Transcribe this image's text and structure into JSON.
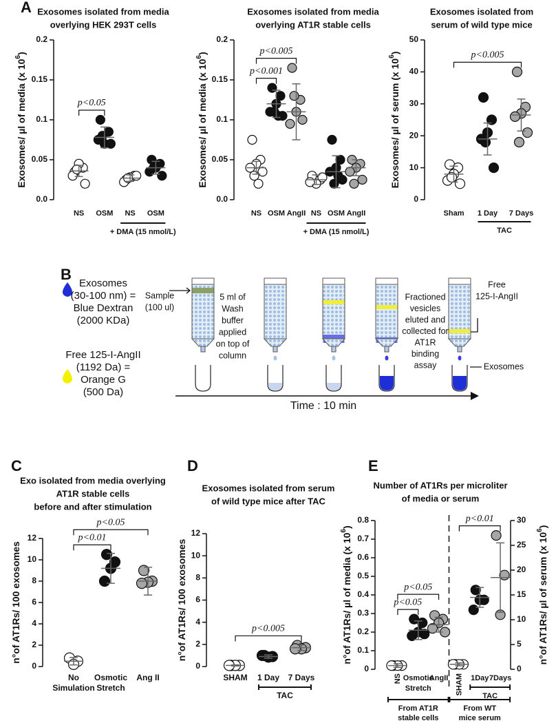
{
  "chart_data": [
    {
      "type": "dot",
      "panel_label": "A",
      "title": [
        "Exosomes isolated from media",
        "overlying HEK 293T cells"
      ],
      "ylabel": [
        "Exosomes/ µl of media (x 10",
        "6",
        ")"
      ],
      "ylim": [
        0,
        0.2
      ],
      "yticks": [
        {
          "value": 0,
          "label": "0.0"
        },
        0.05,
        0.1,
        0.15,
        0.2
      ],
      "categories": [
        "NS",
        "OSM",
        "NS",
        "OSM"
      ],
      "groups": [
        {
          "color": "#ffffff",
          "points": [
            0.035,
            0.04,
            0.045,
            0.03,
            0.02,
            0.038
          ],
          "mean": 0.036,
          "error": 0.007
        },
        {
          "color": "#111111",
          "points": [
            0.1,
            0.085,
            0.07,
            0.075,
            0.07,
            0.08
          ],
          "mean": 0.078,
          "error": 0.013
        },
        {
          "color": "#ffffff",
          "points": [
            0.025,
            0.03,
            0.028,
            0.022,
            0.03,
            0.027
          ],
          "mean": 0.027,
          "error": 0.004
        },
        {
          "color": "#111111",
          "points": [
            0.05,
            0.045,
            0.04,
            0.035,
            0.03,
            0.04
          ],
          "mean": 0.04,
          "error": 0.008
        }
      ],
      "annotations": [
        {
          "text": "p<0.05",
          "from": 0,
          "to": 1
        }
      ],
      "group_labels": [
        {
          "text": "+ DMA (15 nmol/L)",
          "from": 2,
          "to": 3
        }
      ]
    },
    {
      "type": "dot",
      "title": [
        "Exosomes isolated from media",
        "overlying AT1R stable cells"
      ],
      "ylabel": [
        "Exosomes/ µl of media (x 10",
        "6",
        ")"
      ],
      "ylim": [
        0,
        0.2
      ],
      "yticks": [
        {
          "value": 0,
          "label": "0.0"
        },
        0.05,
        0.1,
        0.15,
        0.2
      ],
      "categories": [
        "NS",
        "OSM",
        "AngII",
        "NS",
        "OSM",
        "AngII"
      ],
      "groups": [
        {
          "color": "#ffffff",
          "points": [
            0.075,
            0.05,
            0.045,
            0.04,
            0.035,
            0.03,
            0.02
          ],
          "mean": 0.04,
          "error": 0.008
        },
        {
          "color": "#111111",
          "points": [
            0.14,
            0.13,
            0.12,
            0.11,
            0.105,
            0.11,
            0.105
          ],
          "mean": 0.12,
          "error": 0.017
        },
        {
          "color": "#a6a6a6",
          "points": [
            0.165,
            0.125,
            0.11,
            0.095,
            0.1,
            0.13
          ],
          "mean": 0.11,
          "error": 0.035
        },
        {
          "color": "#ffffff",
          "points": [
            0.03,
            0.025,
            0.02,
            0.022,
            0.028
          ],
          "mean": 0.025,
          "error": 0.006
        },
        {
          "color": "#111111",
          "points": [
            0.075,
            0.05,
            0.04,
            0.035,
            0.025,
            0.02,
            0.03
          ],
          "mean": 0.035,
          "error": 0.02
        },
        {
          "color": "#a6a6a6",
          "points": [
            0.05,
            0.045,
            0.04,
            0.035,
            0.025,
            0.02
          ],
          "mean": 0.04,
          "error": 0.01
        }
      ],
      "annotations": [
        {
          "text": "p<0.001",
          "from": 0,
          "to": 1
        },
        {
          "text": "p<0.005",
          "from": 0,
          "to": 2
        }
      ],
      "group_labels": [
        {
          "text": "+ DMA (15 nmol/L)",
          "from": 3,
          "to": 5
        }
      ]
    },
    {
      "type": "dot",
      "title": [
        "Exosomes isolated from",
        "serum of wild type mice"
      ],
      "ylabel": [
        "Exosomes/ µl of serum (x 10",
        "6",
        ")"
      ],
      "ylim": [
        0,
        50
      ],
      "yticks": [
        0,
        10,
        20,
        30,
        40,
        50
      ],
      "categories": [
        "Sham",
        "1 Day",
        "7 Days"
      ],
      "groups": [
        {
          "color": "#ffffff",
          "points": [
            11,
            10,
            8,
            6,
            5,
            7
          ],
          "mean": 8,
          "error": 2.5
        },
        {
          "color": "#111111",
          "points": [
            32,
            25,
            21,
            19,
            10,
            18
          ],
          "mean": 19,
          "error": 5
        },
        {
          "color": "#a6a6a6",
          "points": [
            40,
            29,
            27,
            26,
            21,
            18
          ],
          "mean": 26.5,
          "error": 5
        }
      ],
      "annotations": [
        {
          "text": "p<0.005",
          "from": 0,
          "to": 2
        }
      ],
      "group_labels": [
        {
          "text": "TAC",
          "from": 1,
          "to": 2
        }
      ]
    },
    {
      "type": "dot",
      "panel_label": "C",
      "title": [
        "Exo isolated from media overlying",
        "AT1R stable cells",
        "before and after stimulation"
      ],
      "ylabel": [
        "n°of AT1Rs/ 100 exosomes"
      ],
      "ylim": [
        0,
        12
      ],
      "yticks": [
        0,
        2,
        4,
        6,
        8,
        10,
        12
      ],
      "categories": [
        [
          "No",
          "Simulation"
        ],
        [
          "Osmotic",
          "Stretch"
        ],
        "Ang II"
      ],
      "groups": [
        {
          "color": "#ffffff",
          "points": [
            0.8,
            0.5,
            0.2
          ],
          "mean": 0.5,
          "error": 0.35
        },
        {
          "color": "#111111",
          "points": [
            10.5,
            9.8,
            9.2,
            8
          ],
          "mean": 9.2,
          "error": 1.4
        },
        {
          "color": "#a6a6a6",
          "points": [
            9,
            8,
            7.9,
            7.8
          ],
          "mean": 8,
          "error": 1.3
        }
      ],
      "annotations": [
        {
          "text": "p<0.01",
          "from": 0,
          "to": 1
        },
        {
          "text": "p<0.05",
          "from": 0,
          "to": 2
        }
      ],
      "group_labels": []
    },
    {
      "type": "dot",
      "panel_label": "D",
      "title": [
        "Exosomes isolated from serum",
        "of wild type mice after TAC"
      ],
      "ylabel": [
        "n°of AT1Rs/ 100 exosomes"
      ],
      "ylim": [
        0,
        12
      ],
      "yticks": [
        0,
        2,
        4,
        6,
        8,
        10,
        12
      ],
      "categories": [
        "SHAM",
        "1 Day",
        "7 Days"
      ],
      "groups": [
        {
          "color": "#ffffff",
          "points": [
            0.1,
            0.1,
            0.1,
            0.1
          ],
          "mean": 0.1,
          "error": 0.05
        },
        {
          "color": "#111111",
          "points": [
            1.0,
            0.9,
            0.85,
            1.0
          ],
          "mean": 0.9,
          "error": 0.15
        },
        {
          "color": "#a6a6a6",
          "points": [
            1.9,
            1.7,
            1.6,
            1.6
          ],
          "mean": 1.7,
          "error": 0.25
        }
      ],
      "annotations": [
        {
          "text": "p<0.005",
          "from": 0,
          "to": 2
        }
      ],
      "group_labels": [
        {
          "text": "TAC",
          "from": 1,
          "to": 2
        }
      ]
    },
    {
      "type": "dot",
      "panel_label": "E",
      "title": [
        "Number of AT1Rs per microliter",
        "of media or serum"
      ],
      "ylabel": [
        "n°of AT1Rs/ µl of media (x 10",
        "6",
        ")"
      ],
      "ylim": [
        0,
        0.8
      ],
      "yticks": [
        0,
        0.1,
        0.2,
        0.3,
        0.4,
        0.5,
        0.6,
        0.7,
        0.8
      ],
      "y2label": [
        "n°of AT1Rs/ µl of serum (x 10",
        "6",
        ")"
      ],
      "y2lim": [
        0,
        30
      ],
      "y2ticks": [
        0,
        5,
        10,
        15,
        20,
        25,
        30
      ],
      "categories": [
        "NS",
        [
          "Osmotic",
          "Stretch"
        ],
        "AngII",
        "SHAM",
        "1Day",
        "7Days"
      ],
      "groups": [
        {
          "color": "#ffffff",
          "points": [
            0.02,
            0.02,
            0.02,
            0.02
          ],
          "mean": 0.02,
          "error": 0.01
        },
        {
          "color": "#111111",
          "points": [
            0.27,
            0.25,
            0.2,
            0.18,
            0.19
          ],
          "mean": 0.21,
          "error": 0.05
        },
        {
          "color": "#a6a6a6",
          "points": [
            0.29,
            0.27,
            0.25,
            0.22,
            0.2
          ],
          "mean": 0.24,
          "error": 0.04
        },
        {
          "color": "#ffffff",
          "axis": "y2",
          "points": [
            1,
            1,
            1,
            1
          ],
          "mean": 1,
          "error": 0.3
        },
        {
          "color": "#111111",
          "axis": "y2",
          "points": [
            16,
            14,
            14,
            12
          ],
          "mean": 14.5,
          "error": 2
        },
        {
          "color": "#a6a6a6",
          "axis": "y2",
          "points": [
            27,
            19,
            11
          ],
          "mean": 18.5,
          "error": 7
        }
      ],
      "annotations": [
        {
          "text": "p<0.05",
          "from": 0,
          "to": 1
        },
        {
          "text": "p<0.05",
          "from": 0,
          "to": 2
        },
        {
          "text": "p<0.01",
          "from": 3,
          "to": 5
        }
      ],
      "group_labels": [
        {
          "text": "TAC",
          "from": 4,
          "to": 5
        },
        {
          "text": [
            "From AT1R",
            "stable cells"
          ],
          "from": 0,
          "to": 2
        },
        {
          "text": [
            "From WT",
            "mice serum"
          ],
          "from": 3,
          "to": 5
        }
      ]
    }
  ],
  "diagram": {
    "panel_label": "B",
    "legend": [
      [
        "Exosomes",
        "(30-100 nm) =",
        "Blue Dextran",
        "(2000 KDa)"
      ],
      [
        "Free 125-I-AngII",
        "(1192 Da) =",
        "Orange G",
        "(500 Da)"
      ]
    ],
    "sample": [
      "Sample",
      "(100 ul)"
    ],
    "wash": [
      "5 ml of",
      "Wash",
      "buffer",
      "applied",
      "on top of",
      "column"
    ],
    "fractioned": [
      "Fractioned",
      "vesicles",
      "eluted and",
      "collected for",
      "AT1R",
      "binding",
      "assay"
    ],
    "free": [
      "Free",
      "125-I-AngII"
    ],
    "exosomes": "Exosomes",
    "time": "Time : 10 min"
  }
}
